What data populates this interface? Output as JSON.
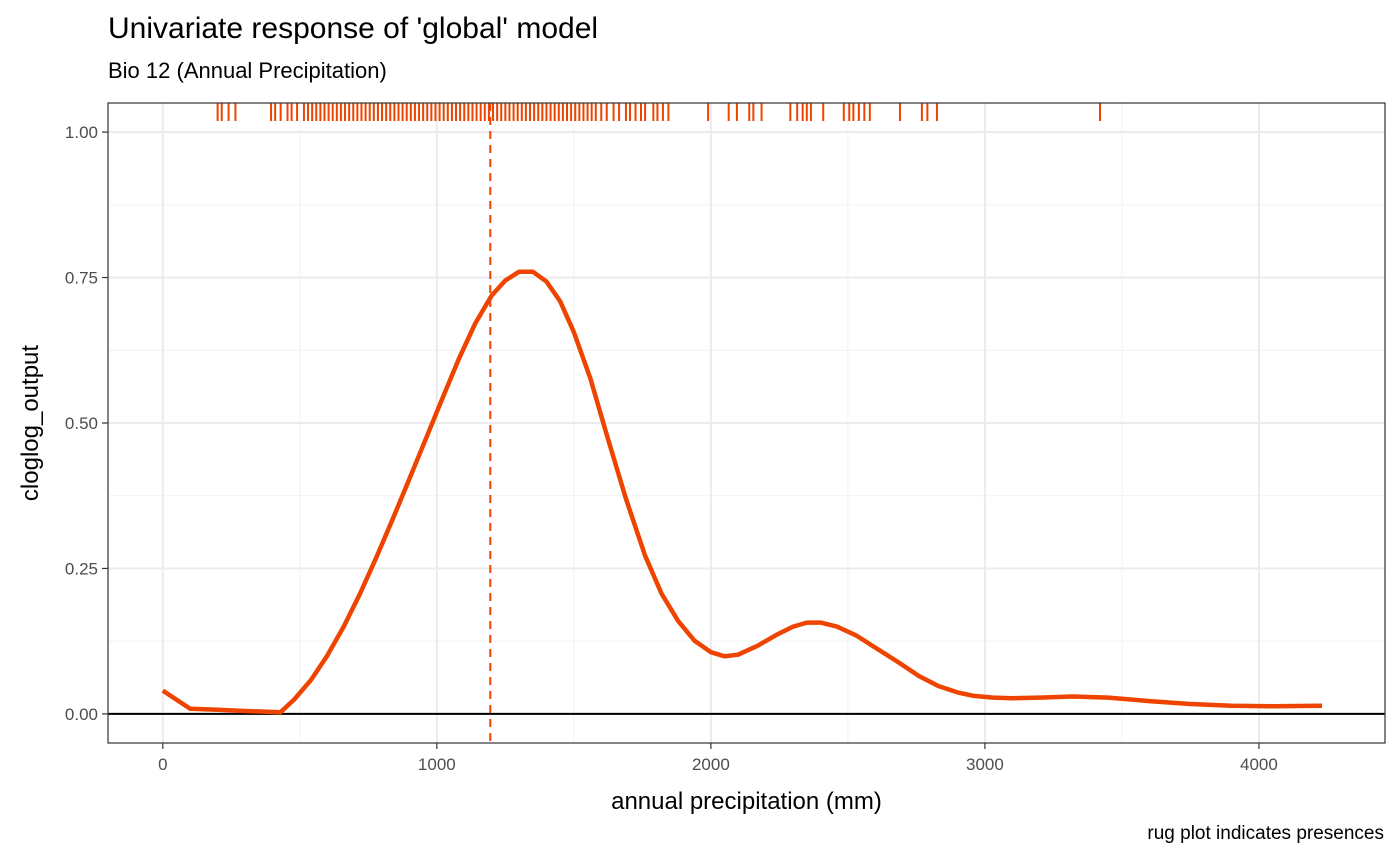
{
  "chart_data": {
    "type": "line",
    "title": "Univariate response of 'global' model",
    "subtitle": "Bio 12 (Annual Precipitation)",
    "caption": "rug plot indicates presences",
    "xlabel": "annual precipitation (mm)",
    "ylabel": "cloglog_output",
    "xlim": [
      -200,
      4460
    ],
    "ylim": [
      -0.05,
      1.05
    ],
    "x_ticks": [
      0,
      1000,
      2000,
      3000,
      4000
    ],
    "x_tick_labels": [
      "0",
      "1000",
      "2000",
      "3000",
      "4000"
    ],
    "y_ticks": [
      0,
      0.25,
      0.5,
      0.75,
      1.0
    ],
    "y_tick_labels": [
      "0.00",
      "0.25",
      "0.50",
      "0.75",
      "1.00"
    ],
    "grid": true,
    "reference_lines": {
      "horizontal_zero": 0,
      "vertical_dashed": 1195
    },
    "series": [
      {
        "color": "#ee4400",
        "x": [
          0,
          100,
          200,
          300,
          430,
          480,
          540,
          600,
          660,
          720,
          780,
          840,
          900,
          960,
          1020,
          1080,
          1140,
          1200,
          1250,
          1300,
          1350,
          1400,
          1450,
          1500,
          1560,
          1620,
          1690,
          1760,
          1820,
          1880,
          1940,
          2000,
          2050,
          2100,
          2170,
          2240,
          2300,
          2350,
          2400,
          2460,
          2530,
          2600,
          2680,
          2760,
          2830,
          2900,
          2960,
          3030,
          3100,
          3200,
          3320,
          3450,
          3600,
          3750,
          3900,
          4050,
          4230
        ],
        "y": [
          0.04,
          0.009,
          0.007,
          0.005,
          0.003,
          0.025,
          0.058,
          0.1,
          0.15,
          0.207,
          0.27,
          0.336,
          0.404,
          0.473,
          0.542,
          0.61,
          0.671,
          0.719,
          0.745,
          0.76,
          0.76,
          0.743,
          0.709,
          0.656,
          0.577,
          0.48,
          0.37,
          0.272,
          0.207,
          0.16,
          0.126,
          0.106,
          0.099,
          0.102,
          0.117,
          0.136,
          0.15,
          0.157,
          0.157,
          0.15,
          0.135,
          0.114,
          0.09,
          0.065,
          0.048,
          0.037,
          0.031,
          0.028,
          0.027,
          0.028,
          0.03,
          0.028,
          0.022,
          0.017,
          0.014,
          0.013,
          0.014
        ]
      }
    ],
    "rug": {
      "color": "#ee4400",
      "x": [
        200,
        215,
        240,
        265,
        395,
        410,
        430,
        455,
        470,
        490,
        515,
        530,
        545,
        560,
        575,
        590,
        605,
        620,
        635,
        650,
        665,
        680,
        695,
        710,
        725,
        740,
        755,
        770,
        785,
        800,
        815,
        830,
        845,
        860,
        875,
        890,
        905,
        920,
        935,
        950,
        965,
        980,
        995,
        1010,
        1025,
        1040,
        1055,
        1070,
        1085,
        1100,
        1115,
        1130,
        1145,
        1160,
        1175,
        1190,
        1205,
        1220,
        1235,
        1250,
        1265,
        1280,
        1295,
        1310,
        1325,
        1340,
        1355,
        1370,
        1385,
        1400,
        1415,
        1430,
        1445,
        1460,
        1475,
        1490,
        1505,
        1520,
        1535,
        1550,
        1565,
        1580,
        1600,
        1620,
        1645,
        1665,
        1690,
        1705,
        1725,
        1745,
        1760,
        1790,
        1805,
        1825,
        1845,
        1990,
        2065,
        2095,
        2140,
        2155,
        2185,
        2290,
        2315,
        2335,
        2350,
        2365,
        2410,
        2485,
        2505,
        2520,
        2540,
        2560,
        2580,
        2690,
        2770,
        2790,
        2825,
        3420
      ]
    }
  }
}
